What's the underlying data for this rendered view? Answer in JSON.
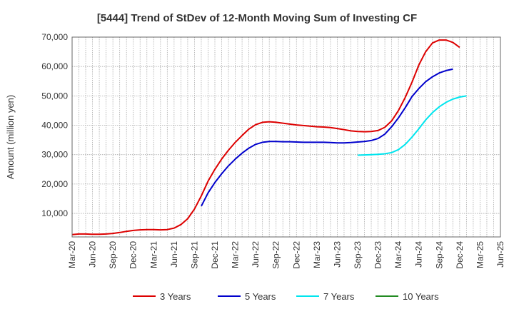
{
  "chart_data": {
    "type": "line",
    "title": "[5444]  Trend of StDev of 12-Month Moving Sum of Investing CF",
    "ylabel": "Amount (million yen)",
    "xlabel": "",
    "ylim": [
      0,
      70000
    ],
    "yticks": [
      10000,
      20000,
      30000,
      40000,
      50000,
      60000,
      70000
    ],
    "ytick_labels": [
      "10,000",
      "20,000",
      "30,000",
      "40,000",
      "50,000",
      "60,000",
      "70,000"
    ],
    "xticks": [
      "Mar-20",
      "Jun-20",
      "Sep-20",
      "Dec-20",
      "Mar-21",
      "Jun-21",
      "Sep-21",
      "Dec-21",
      "Mar-22",
      "Jun-22",
      "Sep-22",
      "Dec-22",
      "Mar-23",
      "Jun-23",
      "Sep-23",
      "Dec-23",
      "Mar-24",
      "Jun-24",
      "Sep-24",
      "Dec-24",
      "Mar-25",
      "Jun-25"
    ],
    "grid": true,
    "legend_position": "bottom",
    "series": [
      {
        "name": "3 Years",
        "color": "#dd0000",
        "start_index": 0,
        "values": [
          2800,
          3000,
          3000,
          2900,
          2900,
          3000,
          3200,
          3500,
          3900,
          4200,
          4400,
          4500,
          4500,
          4400,
          4500,
          5000,
          6200,
          8200,
          11500,
          16000,
          21000,
          25000,
          28500,
          31500,
          34200,
          36500,
          38700,
          40200,
          41000,
          41200,
          41000,
          40700,
          40400,
          40100,
          39900,
          39700,
          39500,
          39400,
          39200,
          38900,
          38500,
          38100,
          37900,
          37800,
          37900,
          38200,
          39300,
          41500,
          45000,
          49500,
          54700,
          60500,
          65000,
          68000,
          69000,
          69000,
          68200,
          66500
        ]
      },
      {
        "name": "5 Years",
        "color": "#0000cc",
        "start_index": 19,
        "values": [
          12500,
          17000,
          20500,
          23500,
          26200,
          28500,
          30500,
          32200,
          33500,
          34200,
          34500,
          34500,
          34400,
          34400,
          34300,
          34200,
          34200,
          34200,
          34200,
          34100,
          34000,
          34000,
          34100,
          34300,
          34500,
          34800,
          35500,
          37000,
          39500,
          42500,
          46000,
          49800,
          52500,
          54800,
          56500,
          57800,
          58600,
          59100
        ]
      },
      {
        "name": "7 Years",
        "color": "#00e5ee",
        "start_index": 42,
        "values": [
          29800,
          29900,
          30000,
          30100,
          30300,
          30700,
          31700,
          33500,
          36000,
          38800,
          41800,
          44300,
          46300,
          47800,
          48900,
          49600,
          50000
        ]
      },
      {
        "name": "10 Years",
        "color": "#228b22",
        "start_index": 0,
        "values": []
      }
    ]
  }
}
